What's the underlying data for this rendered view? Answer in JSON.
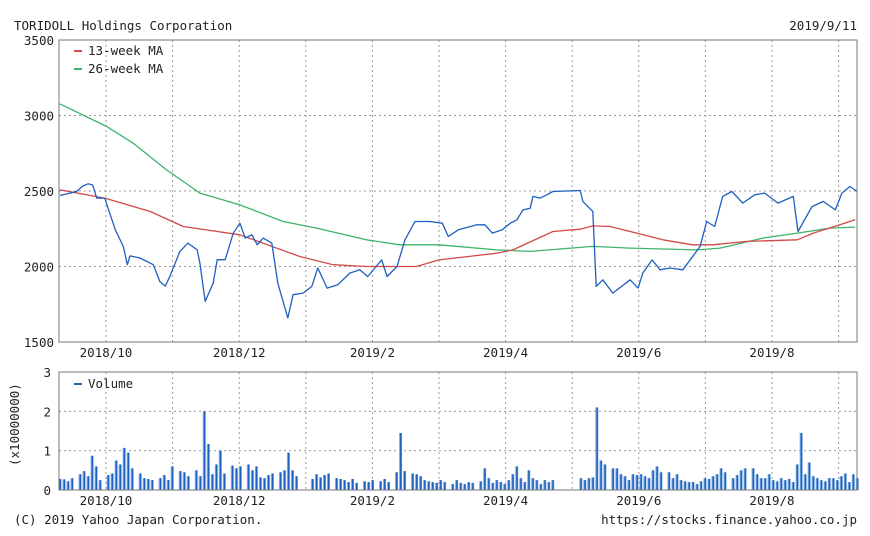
{
  "header": {
    "title": "TORIDOLL Holdings Corporation",
    "date": "2019/9/11"
  },
  "footer": {
    "copyright": "(C) 2019 Yahoo Japan Corporation.",
    "url": "https://stocks.finance.yahoo.co.jp"
  },
  "colors": {
    "price": "#1f5fbf",
    "ma13": "#d24a4a",
    "ma26": "#3db36b",
    "volume": "#1f5fbf",
    "grid": "#999999"
  },
  "chart_data": [
    {
      "type": "line",
      "title": "TORIDOLL Holdings Corporation",
      "x_unit": "months from 2018/10",
      "xticks": [
        {
          "m": 0,
          "label": "2018/10"
        },
        {
          "m": 2,
          "label": "2018/12"
        },
        {
          "m": 4,
          "label": "2019/2"
        },
        {
          "m": 6,
          "label": "2019/4"
        },
        {
          "m": 8,
          "label": "2019/6"
        },
        {
          "m": 10,
          "label": "2019/8"
        }
      ],
      "xgrid_months": [
        0,
        1,
        2,
        3,
        4,
        5,
        6,
        7,
        8,
        9,
        10,
        11
      ],
      "xlim": [
        -0.69,
        11.28
      ],
      "ylim": [
        1500,
        3500
      ],
      "yticks": [
        "1500",
        "2000",
        "2500",
        "3000",
        "3500"
      ],
      "grid": true,
      "legend": "top-left",
      "series": [
        {
          "name": "price",
          "legend": "",
          "points": [
            [
              -0.69,
              2470
            ],
            [
              -0.44,
              2497
            ],
            [
              -0.36,
              2530
            ],
            [
              -0.27,
              2548
            ],
            [
              -0.2,
              2540
            ],
            [
              -0.14,
              2453
            ],
            [
              -0.02,
              2453
            ],
            [
              0.14,
              2243
            ],
            [
              0.26,
              2133
            ],
            [
              0.32,
              2012
            ],
            [
              0.36,
              2070
            ],
            [
              0.51,
              2056
            ],
            [
              0.71,
              2012
            ],
            [
              0.81,
              1900
            ],
            [
              0.89,
              1870
            ],
            [
              0.96,
              1935
            ],
            [
              1.11,
              2100
            ],
            [
              1.23,
              2155
            ],
            [
              1.37,
              2110
            ],
            [
              1.41,
              2022
            ],
            [
              1.49,
              1769
            ],
            [
              1.61,
              1890
            ],
            [
              1.67,
              2045
            ],
            [
              1.79,
              2045
            ],
            [
              1.91,
              2220
            ],
            [
              2.01,
              2287
            ],
            [
              2.09,
              2188
            ],
            [
              2.19,
              2210
            ],
            [
              2.27,
              2144
            ],
            [
              2.36,
              2188
            ],
            [
              2.49,
              2155
            ],
            [
              2.58,
              1890
            ],
            [
              2.73,
              1659
            ],
            [
              2.81,
              1813
            ],
            [
              2.96,
              1824
            ],
            [
              3.09,
              1868
            ],
            [
              3.18,
              1990
            ],
            [
              3.32,
              1857
            ],
            [
              3.48,
              1879
            ],
            [
              3.66,
              1956
            ],
            [
              3.81,
              1978
            ],
            [
              3.93,
              1934
            ],
            [
              4.14,
              2044
            ],
            [
              4.22,
              1934
            ],
            [
              4.37,
              2000
            ],
            [
              4.49,
              2177
            ],
            [
              4.64,
              2298
            ],
            [
              4.86,
              2298
            ],
            [
              5.05,
              2287
            ],
            [
              5.14,
              2199
            ],
            [
              5.29,
              2243
            ],
            [
              5.57,
              2276
            ],
            [
              5.69,
              2276
            ],
            [
              5.8,
              2221
            ],
            [
              5.95,
              2243
            ],
            [
              6.07,
              2287
            ],
            [
              6.17,
              2309
            ],
            [
              6.26,
              2375
            ],
            [
              6.37,
              2386
            ],
            [
              6.41,
              2464
            ],
            [
              6.52,
              2453
            ],
            [
              6.62,
              2475
            ],
            [
              6.71,
              2497
            ],
            [
              7.12,
              2503
            ],
            [
              7.16,
              2431
            ],
            [
              7.31,
              2365
            ],
            [
              7.36,
              1868
            ],
            [
              7.46,
              1912
            ],
            [
              7.61,
              1824
            ],
            [
              7.87,
              1912
            ],
            [
              7.99,
              1857
            ],
            [
              8.06,
              1956
            ],
            [
              8.2,
              2044
            ],
            [
              8.32,
              1978
            ],
            [
              8.47,
              1990
            ],
            [
              8.66,
              1978
            ],
            [
              8.81,
              2066
            ],
            [
              8.92,
              2133
            ],
            [
              9.02,
              2298
            ],
            [
              9.14,
              2265
            ],
            [
              9.26,
              2464
            ],
            [
              9.4,
              2497
            ],
            [
              9.56,
              2420
            ],
            [
              9.74,
              2475
            ],
            [
              9.89,
              2486
            ],
            [
              10.09,
              2420
            ],
            [
              10.32,
              2464
            ],
            [
              10.39,
              2232
            ],
            [
              10.6,
              2397
            ],
            [
              10.77,
              2431
            ],
            [
              10.95,
              2375
            ],
            [
              11.05,
              2486
            ],
            [
              11.17,
              2530
            ],
            [
              11.28,
              2497
            ]
          ]
        },
        {
          "name": "ma13",
          "legend": "13-week MA",
          "points": [
            [
              -0.69,
              2508
            ],
            [
              -0.02,
              2453
            ],
            [
              0.66,
              2365
            ],
            [
              1.16,
              2265
            ],
            [
              2.01,
              2210
            ],
            [
              2.91,
              2066
            ],
            [
              3.41,
              2012
            ],
            [
              3.91,
              2000
            ],
            [
              4.66,
              2000
            ],
            [
              5.0,
              2044
            ],
            [
              5.87,
              2088
            ],
            [
              6.11,
              2110
            ],
            [
              6.71,
              2232
            ],
            [
              7.12,
              2247
            ],
            [
              7.31,
              2269
            ],
            [
              7.57,
              2265
            ],
            [
              7.97,
              2221
            ],
            [
              8.36,
              2177
            ],
            [
              8.81,
              2144
            ],
            [
              9.11,
              2144
            ],
            [
              9.62,
              2166
            ],
            [
              10.38,
              2177
            ],
            [
              10.62,
              2221
            ],
            [
              11.02,
              2276
            ],
            [
              11.25,
              2309
            ]
          ]
        },
        {
          "name": "ma26",
          "legend": "26-week MA",
          "points": [
            [
              -0.69,
              3077
            ],
            [
              0.01,
              2927
            ],
            [
              0.41,
              2816
            ],
            [
              0.91,
              2640
            ],
            [
              1.41,
              2486
            ],
            [
              2.01,
              2408
            ],
            [
              2.66,
              2298
            ],
            [
              3.16,
              2254
            ],
            [
              3.91,
              2177
            ],
            [
              4.41,
              2144
            ],
            [
              5.0,
              2144
            ],
            [
              5.87,
              2110
            ],
            [
              6.37,
              2100
            ],
            [
              7.31,
              2133
            ],
            [
              7.87,
              2122
            ],
            [
              8.87,
              2110
            ],
            [
              9.22,
              2122
            ],
            [
              9.86,
              2188
            ],
            [
              10.38,
              2221
            ],
            [
              10.87,
              2254
            ],
            [
              11.25,
              2261
            ]
          ]
        }
      ]
    },
    {
      "type": "bar",
      "title": "Volume",
      "legend": "top-left",
      "ylabel": "(x10000000)",
      "ylim": [
        0,
        3
      ],
      "yticks": [
        "0",
        "1",
        "2",
        "3"
      ],
      "xlim": [
        -0.69,
        11.28
      ],
      "xticks": [
        "2018/10",
        "2018/12",
        "2019/2",
        "2019/4",
        "2019/6",
        "2019/8"
      ],
      "series": [
        {
          "name": "Volume",
          "values": [
            0.28,
            0.27,
            0.22,
            0.3,
            0,
            0.4,
            0.48,
            0.35,
            0.87,
            0.6,
            0.25,
            0,
            0.38,
            0.42,
            0.75,
            0.65,
            1.07,
            0.95,
            0.55,
            0,
            0.42,
            0.3,
            0.28,
            0.25,
            0,
            0.3,
            0.38,
            0.25,
            0.6,
            0,
            0.48,
            0.45,
            0.35,
            0,
            0.5,
            0.35,
            2.0,
            1.17,
            0.4,
            0.65,
            1.0,
            0.42,
            0,
            0.62,
            0.55,
            0.6,
            0,
            0.65,
            0.5,
            0.6,
            0.32,
            0.3,
            0.38,
            0.42,
            0,
            0.45,
            0.5,
            0.95,
            0.5,
            0.35,
            0,
            0,
            0,
            0.28,
            0.4,
            0.32,
            0.38,
            0.42,
            0,
            0.3,
            0.28,
            0.25,
            0.2,
            0.28,
            0.18,
            0,
            0.22,
            0.2,
            0.25,
            0,
            0.22,
            0.28,
            0.2,
            0,
            0.45,
            1.45,
            0.48,
            0,
            0.42,
            0.4,
            0.35,
            0.25,
            0.22,
            0.2,
            0.18,
            0.25,
            0.2,
            0,
            0.15,
            0.25,
            0.18,
            0.15,
            0.2,
            0.18,
            0,
            0.22,
            0.55,
            0.3,
            0.18,
            0.25,
            0.2,
            0.15,
            0.25,
            0.4,
            0.6,
            0.3,
            0.2,
            0.5,
            0.3,
            0.25,
            0.15,
            0.25,
            0.2,
            0.25,
            0,
            0,
            0,
            0,
            0,
            0,
            0.3,
            0.25,
            0.3,
            0.32,
            2.1,
            0.75,
            0.65,
            0,
            0.55,
            0.55,
            0.4,
            0.35,
            0.25,
            0.4,
            0.38,
            0.4,
            0.35,
            0.3,
            0.5,
            0.6,
            0.45,
            0,
            0.45,
            0.3,
            0.4,
            0.25,
            0.22,
            0.2,
            0.2,
            0.15,
            0.22,
            0.3,
            0.28,
            0.35,
            0.4,
            0.55,
            0.45,
            0,
            0.3,
            0.38,
            0.5,
            0.55,
            0,
            0.55,
            0.4,
            0.3,
            0.3,
            0.4,
            0.25,
            0.22,
            0.3,
            0.25,
            0.28,
            0.2,
            0.65,
            1.45,
            0.4,
            0.7,
            0.35,
            0.3,
            0.25,
            0.22,
            0.3,
            0.3,
            0.25,
            0.35,
            0.42,
            0.2,
            0.4,
            0.3
          ]
        }
      ]
    }
  ]
}
